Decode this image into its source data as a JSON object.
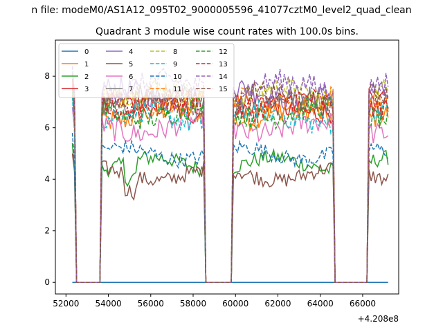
{
  "chart_data": {
    "type": "line",
    "suptitle": "n file: modeM0/AS1A12_095T02_9000005596_41077cztM0_level2_quad_clean",
    "title": "Quadrant 3 module wise count rates with 100.0s bins.",
    "xlabel": "",
    "ylabel": "",
    "x_offset_label": "+4.208e8",
    "xlim": [
      51500,
      67700
    ],
    "ylim": [
      -0.45,
      9.4
    ],
    "xticks": [
      52000,
      54000,
      56000,
      58000,
      60000,
      62000,
      64000,
      66000
    ],
    "yticks": [
      0,
      2,
      4,
      6,
      8
    ],
    "grid": false,
    "legend_position": "top-left",
    "segments": [
      [
        52300,
        52400
      ],
      [
        53700,
        58500
      ],
      [
        59900,
        64600
      ],
      [
        66300,
        67200
      ]
    ],
    "gap_starts": [
      52500,
      58700,
      64800
    ],
    "series": [
      {
        "name": "0",
        "color": "#1f77b4",
        "style": "solid",
        "level": 0.0
      },
      {
        "name": "1",
        "color": "#ff7f0e",
        "style": "solid",
        "level": 6.5
      },
      {
        "name": "2",
        "color": "#2ca02c",
        "style": "solid",
        "level": 4.6
      },
      {
        "name": "3",
        "color": "#d62728",
        "style": "solid",
        "level": 6.8
      },
      {
        "name": "4",
        "color": "#9467bd",
        "style": "solid",
        "level": 7.3
      },
      {
        "name": "5",
        "color": "#8c564b",
        "style": "solid",
        "level": 4.2
      },
      {
        "name": "6",
        "color": "#e377c2",
        "style": "solid",
        "level": 6.0
      },
      {
        "name": "7",
        "color": "#7f7f7f",
        "style": "solid",
        "level": 7.0
      },
      {
        "name": "8",
        "color": "#bcbd22",
        "style": "dashed",
        "level": 7.3
      },
      {
        "name": "9",
        "color": "#17becf",
        "style": "dashed",
        "level": 6.4
      },
      {
        "name": "10",
        "color": "#1f77b4",
        "style": "dashed",
        "level": 5.0
      },
      {
        "name": "11",
        "color": "#ff7f0e",
        "style": "dashed",
        "level": 7.0
      },
      {
        "name": "12",
        "color": "#2ca02c",
        "style": "dashed",
        "level": 6.6
      },
      {
        "name": "13",
        "color": "#d62728",
        "style": "dashed",
        "level": 6.9
      },
      {
        "name": "14",
        "color": "#9467bd",
        "style": "dashed",
        "level": 7.6
      },
      {
        "name": "15",
        "color": "#8c564b",
        "style": "dashed",
        "level": 7.1
      }
    ]
  }
}
